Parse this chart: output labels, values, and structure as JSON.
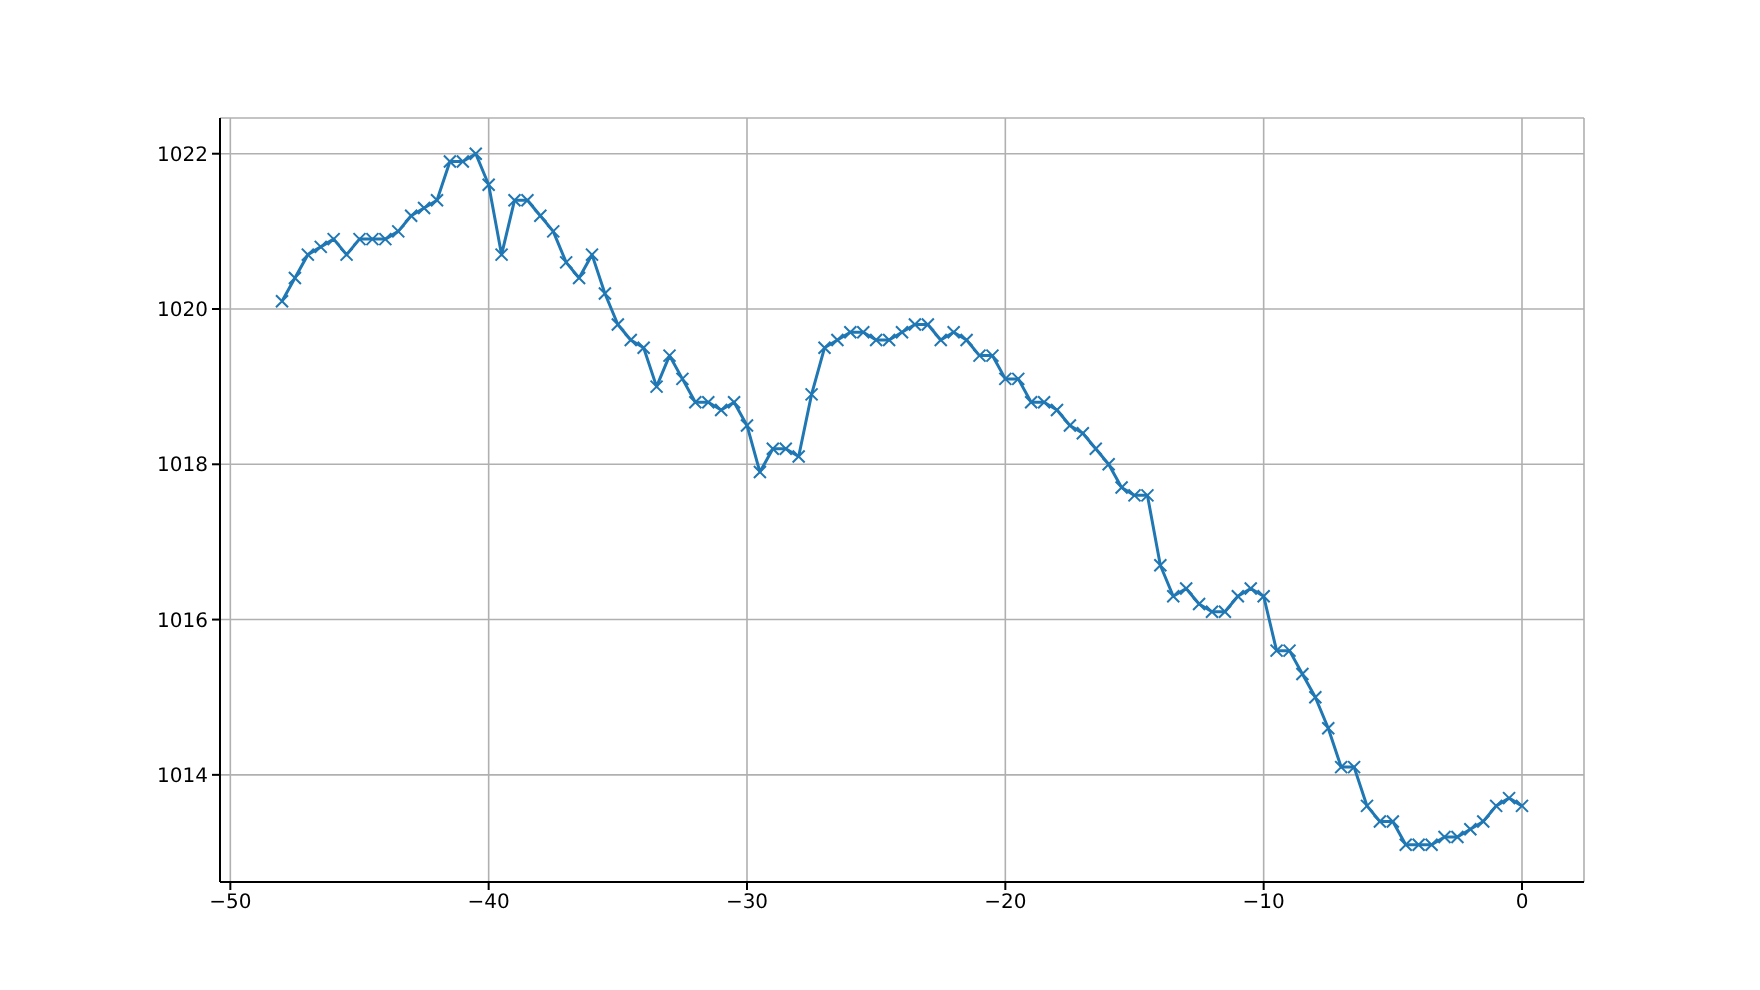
{
  "chart_data": {
    "type": "line",
    "x": [
      -48,
      -47.5,
      -47,
      -46.5,
      -46,
      -45.5,
      -45,
      -44.5,
      -44,
      -43.5,
      -43,
      -42.5,
      -42,
      -41.5,
      -41,
      -40.5,
      -40,
      -39.5,
      -39,
      -38.5,
      -38,
      -37.5,
      -37,
      -36.5,
      -36,
      -35.5,
      -35,
      -34.5,
      -34,
      -33.5,
      -33,
      -32.5,
      -32,
      -31.5,
      -31,
      -30.5,
      -30,
      -29.5,
      -29,
      -28.5,
      -28,
      -27.5,
      -27,
      -26.5,
      -26,
      -25.5,
      -25,
      -24.5,
      -24,
      -23.5,
      -23,
      -22.5,
      -22,
      -21.5,
      -21,
      -20.5,
      -20,
      -19.5,
      -19,
      -18.5,
      -18,
      -17.5,
      -17,
      -16.5,
      -16,
      -15.5,
      -15,
      -14.5,
      -14,
      -13.5,
      -13,
      -12.5,
      -12,
      -11.5,
      -11,
      -10.5,
      -10,
      -9.5,
      -9,
      -8.5,
      -8,
      -7.5,
      -7,
      -6.5,
      -6,
      -5.5,
      -5,
      -4.5,
      -4,
      -3.5,
      -3,
      -2.5,
      -2,
      -1.5,
      -1,
      -0.5,
      0
    ],
    "series": [
      {
        "color": "#1f77b4",
        "values": [
          1020.1,
          1020.4,
          1020.7,
          1020.8,
          1020.9,
          1020.7,
          1020.9,
          1020.9,
          1020.9,
          1021.0,
          1021.2,
          1021.3,
          1021.4,
          1021.9,
          1021.9,
          1022.0,
          1021.6,
          1020.7,
          1021.4,
          1021.4,
          1021.2,
          1021.0,
          1020.6,
          1020.4,
          1020.7,
          1020.2,
          1019.8,
          1019.6,
          1019.5,
          1019.0,
          1019.4,
          1019.1,
          1018.8,
          1018.8,
          1018.7,
          1018.8,
          1018.5,
          1017.9,
          1018.2,
          1018.2,
          1018.1,
          1018.9,
          1019.5,
          1019.6,
          1019.7,
          1019.7,
          1019.6,
          1019.6,
          1019.7,
          1019.8,
          1019.8,
          1019.6,
          1019.7,
          1019.6,
          1019.4,
          1019.4,
          1019.1,
          1019.1,
          1018.8,
          1018.8,
          1018.7,
          1018.5,
          1018.4,
          1018.2,
          1018.0,
          1017.7,
          1017.6,
          1017.6,
          1016.7,
          1016.3,
          1016.4,
          1016.2,
          1016.1,
          1016.1,
          1016.3,
          1016.4,
          1016.3,
          1015.6,
          1015.6,
          1015.3,
          1015.0,
          1014.6,
          1014.1,
          1014.1,
          1013.6,
          1013.4,
          1013.4,
          1013.1,
          1013.1,
          1013.1,
          1013.2,
          1013.2,
          1013.3,
          1013.4,
          1013.6,
          1013.7,
          1013.6
        ]
      }
    ],
    "xlim": [
      -50.4,
      2.4
    ],
    "xticks": [
      {
        "value": -50,
        "label": "−50"
      },
      {
        "value": -40,
        "label": "−40"
      },
      {
        "value": -30,
        "label": "−30"
      },
      {
        "value": -20,
        "label": "−20"
      },
      {
        "value": -10,
        "label": "−10"
      },
      0
    ],
    "ylim": [
      1012.62,
      1022.46
    ],
    "yticks": [
      1014,
      1016,
      1018,
      1020,
      1022
    ],
    "grid": true,
    "marker": "cross",
    "line_style": "solid",
    "legend": false
  }
}
